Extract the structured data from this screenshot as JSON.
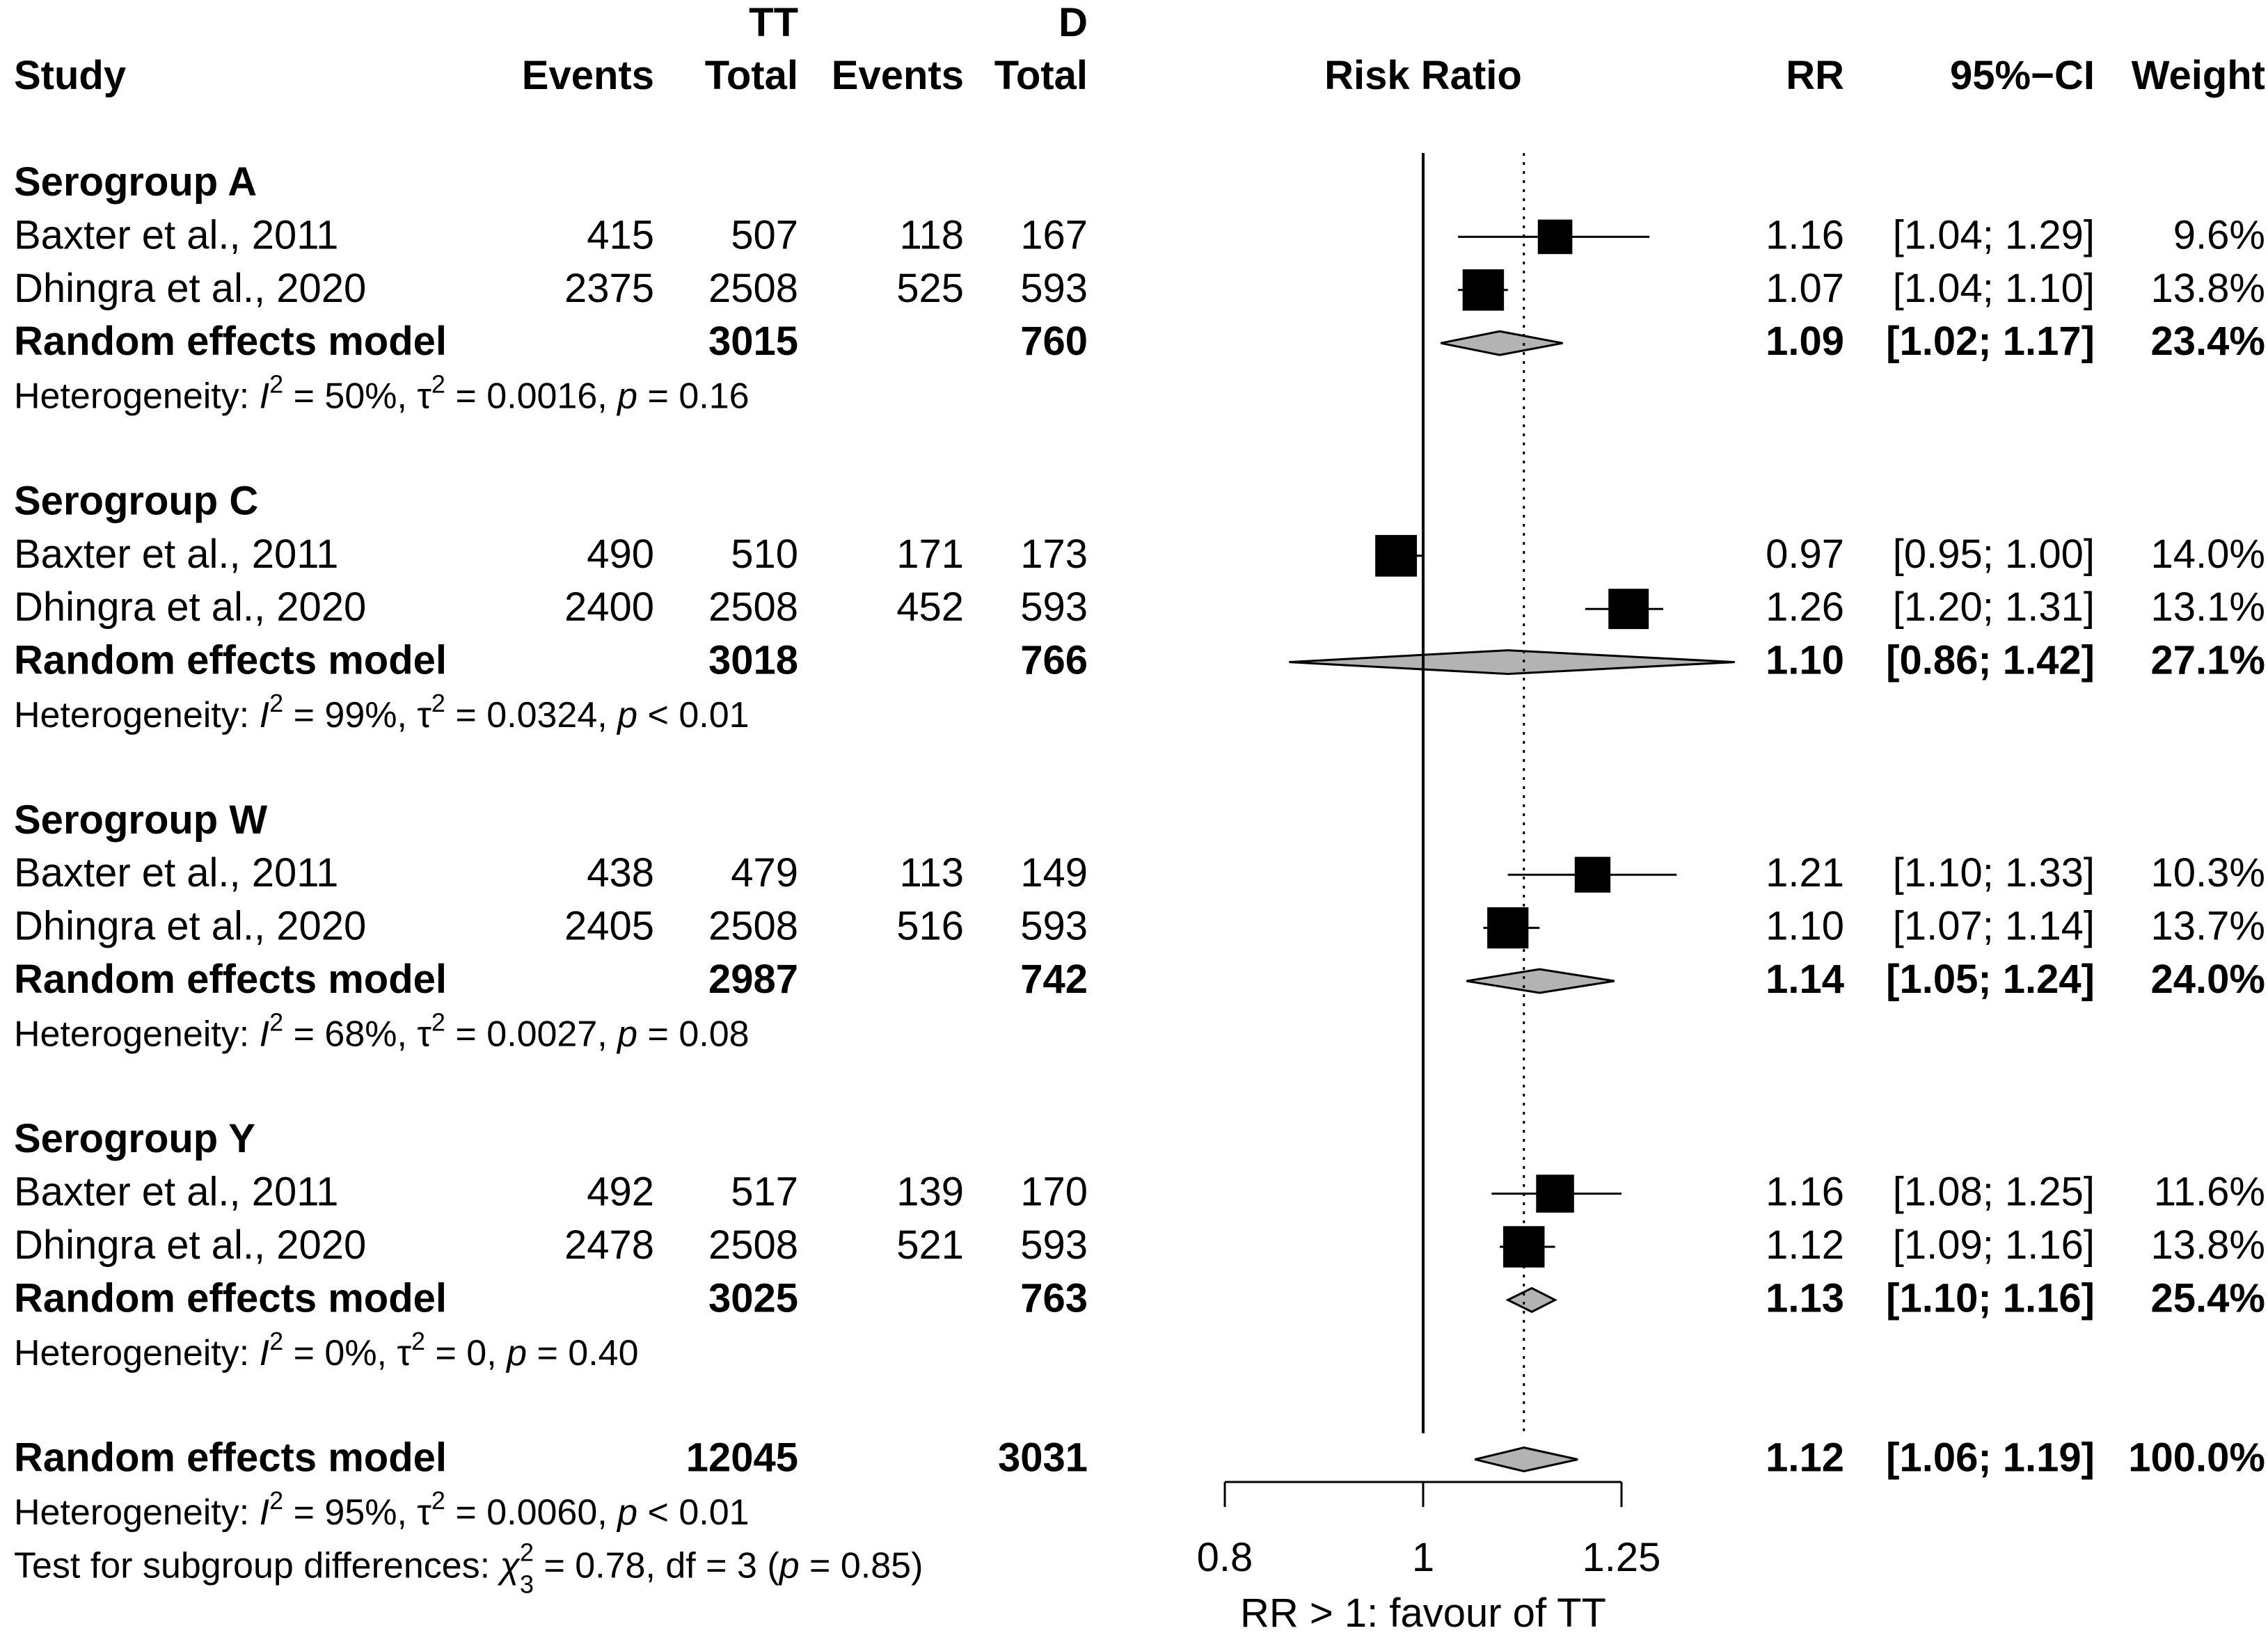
{
  "header": {
    "group1": "TT",
    "group2": "D",
    "study": "Study",
    "events": "Events",
    "total": "Total",
    "risk_ratio": "Risk Ratio",
    "rr": "RR",
    "ci": "95%−CI",
    "weight": "Weight"
  },
  "axis": {
    "ticks": [
      {
        "value": 0.8,
        "label": "0.8"
      },
      {
        "value": 1,
        "label": "1"
      },
      {
        "value": 1.25,
        "label": "1.25"
      }
    ],
    "xlim": [
      0.8,
      1.25
    ],
    "label": "RR > 1: favour of TT",
    "scale": "log",
    "null_value": 1,
    "overall_estimate": 1.12
  },
  "chart_data": {
    "type": "forest",
    "scale": "log",
    "subgroups": [
      {
        "title": "Serogroup A",
        "studies": [
          {
            "study": "Baxter et al., 2011",
            "e1": "415",
            "n1": "507",
            "e2": "118",
            "n2": "167",
            "rr": 1.16,
            "lo": 1.04,
            "hi": 1.29,
            "rr_text": "1.16",
            "ci_text": "[1.04; 1.29]",
            "weight_text": "9.6%",
            "weight": 9.6
          },
          {
            "study": "Dhingra et al., 2020",
            "e1": "2375",
            "n1": "2508",
            "e2": "525",
            "n2": "593",
            "rr": 1.07,
            "lo": 1.04,
            "hi": 1.1,
            "rr_text": "1.07",
            "ci_text": "[1.04; 1.10]",
            "weight_text": "13.8%",
            "weight": 13.8
          }
        ],
        "pooled": {
          "label": "Random effects model",
          "n1": "3015",
          "n2": "760",
          "rr": 1.09,
          "lo": 1.02,
          "hi": 1.17,
          "rr_text": "1.09",
          "ci_text": "[1.02; 1.17]",
          "weight_text": "23.4%"
        },
        "heterogeneity": {
          "prefix": "Heterogeneity: ",
          "i": "I",
          "i2_sup": "2",
          "i2_val": " = 50%, ",
          "tau": "τ",
          "tau_sup": "2",
          "tau_val": " = 0.0016, ",
          "p": "p",
          "p_val": " = 0.16"
        }
      },
      {
        "title": "Serogroup C",
        "studies": [
          {
            "study": "Baxter et al., 2011",
            "e1": "490",
            "n1": "510",
            "e2": "171",
            "n2": "173",
            "rr": 0.97,
            "lo": 0.95,
            "hi": 1.0,
            "rr_text": "0.97",
            "ci_text": "[0.95; 1.00]",
            "weight_text": "14.0%",
            "weight": 14.0
          },
          {
            "study": "Dhingra et al., 2020",
            "e1": "2400",
            "n1": "2508",
            "e2": "452",
            "n2": "593",
            "rr": 1.26,
            "lo": 1.2,
            "hi": 1.31,
            "rr_text": "1.26",
            "ci_text": "[1.20; 1.31]",
            "weight_text": "13.1%",
            "weight": 13.1
          }
        ],
        "pooled": {
          "label": "Random effects model",
          "n1": "3018",
          "n2": "766",
          "rr": 1.1,
          "lo": 0.86,
          "hi": 1.42,
          "rr_text": "1.10",
          "ci_text": "[0.86; 1.42]",
          "weight_text": "27.1%"
        },
        "heterogeneity": {
          "prefix": "Heterogeneity: ",
          "i": "I",
          "i2_sup": "2",
          "i2_val": " = 99%, ",
          "tau": "τ",
          "tau_sup": "2",
          "tau_val": " = 0.0324, ",
          "p": "p",
          "p_val": " < 0.01"
        }
      },
      {
        "title": "Serogroup W",
        "studies": [
          {
            "study": "Baxter et al., 2011",
            "e1": "438",
            "n1": "479",
            "e2": "113",
            "n2": "149",
            "rr": 1.21,
            "lo": 1.1,
            "hi": 1.33,
            "rr_text": "1.21",
            "ci_text": "[1.10; 1.33]",
            "weight_text": "10.3%",
            "weight": 10.3
          },
          {
            "study": "Dhingra et al., 2020",
            "e1": "2405",
            "n1": "2508",
            "e2": "516",
            "n2": "593",
            "rr": 1.1,
            "lo": 1.07,
            "hi": 1.14,
            "rr_text": "1.10",
            "ci_text": "[1.07; 1.14]",
            "weight_text": "13.7%",
            "weight": 13.7
          }
        ],
        "pooled": {
          "label": "Random effects model",
          "n1": "2987",
          "n2": "742",
          "rr": 1.14,
          "lo": 1.05,
          "hi": 1.24,
          "rr_text": "1.14",
          "ci_text": "[1.05; 1.24]",
          "weight_text": "24.0%"
        },
        "heterogeneity": {
          "prefix": "Heterogeneity: ",
          "i": "I",
          "i2_sup": "2",
          "i2_val": " = 68%, ",
          "tau": "τ",
          "tau_sup": "2",
          "tau_val": " = 0.0027, ",
          "p": "p",
          "p_val": " = 0.08"
        }
      },
      {
        "title": "Serogroup Y",
        "studies": [
          {
            "study": "Baxter et al., 2011",
            "e1": "492",
            "n1": "517",
            "e2": "139",
            "n2": "170",
            "rr": 1.16,
            "lo": 1.08,
            "hi": 1.25,
            "rr_text": "1.16",
            "ci_text": "[1.08; 1.25]",
            "weight_text": "11.6%",
            "weight": 11.6
          },
          {
            "study": "Dhingra et al., 2020",
            "e1": "2478",
            "n1": "2508",
            "e2": "521",
            "n2": "593",
            "rr": 1.12,
            "lo": 1.09,
            "hi": 1.16,
            "rr_text": "1.12",
            "ci_text": "[1.09; 1.16]",
            "weight_text": "13.8%",
            "weight": 13.8
          }
        ],
        "pooled": {
          "label": "Random effects model",
          "n1": "3025",
          "n2": "763",
          "rr": 1.13,
          "lo": 1.1,
          "hi": 1.16,
          "rr_text": "1.13",
          "ci_text": "[1.10; 1.16]",
          "weight_text": "25.4%"
        },
        "heterogeneity": {
          "prefix": "Heterogeneity: ",
          "i": "I",
          "i2_sup": "2",
          "i2_val": " = 0%, ",
          "tau": "τ",
          "tau_sup": "2",
          "tau_val": " = 0, ",
          "p": "p",
          "p_val": " = 0.40"
        }
      }
    ],
    "overall": {
      "label": "Random effects model",
      "n1": "12045",
      "n2": "3031",
      "rr": 1.12,
      "lo": 1.06,
      "hi": 1.19,
      "rr_text": "1.12",
      "ci_text": "[1.06; 1.19]",
      "weight_text": "100.0%",
      "heterogeneity": {
        "prefix": "Heterogeneity: ",
        "i": "I",
        "i2_sup": "2",
        "i2_val": " = 95%, ",
        "tau": "τ",
        "tau_sup": "2",
        "tau_val": " = 0.0060, ",
        "p": "p",
        "p_val": " < 0.01"
      },
      "subgroup_test": {
        "prefix": "Test for subgroup differences: ",
        "chi": "χ",
        "chi_sup": "2",
        "chi_sub": "3",
        "chi_val": " = 0.78, df = 3 (",
        "p": "p",
        "p_val": " = 0.85)"
      }
    }
  }
}
